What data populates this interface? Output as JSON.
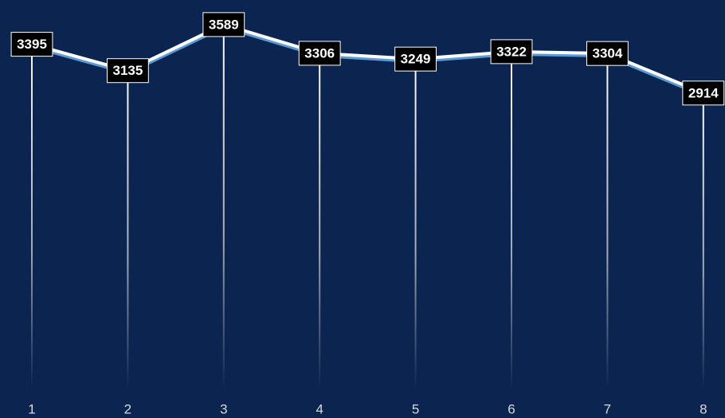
{
  "chart_data": {
    "type": "line",
    "categories": [
      "1",
      "2",
      "3",
      "4",
      "5",
      "6",
      "7",
      "8"
    ],
    "values": [
      3395,
      3135,
      3589,
      3306,
      3249,
      3322,
      3304,
      2914
    ],
    "color": "#ffffff",
    "shadow_color": "#5b9bd5",
    "background": "#0c2550",
    "ylim": [
      0,
      3800
    ],
    "data_labels": true,
    "drop_lines": true
  }
}
